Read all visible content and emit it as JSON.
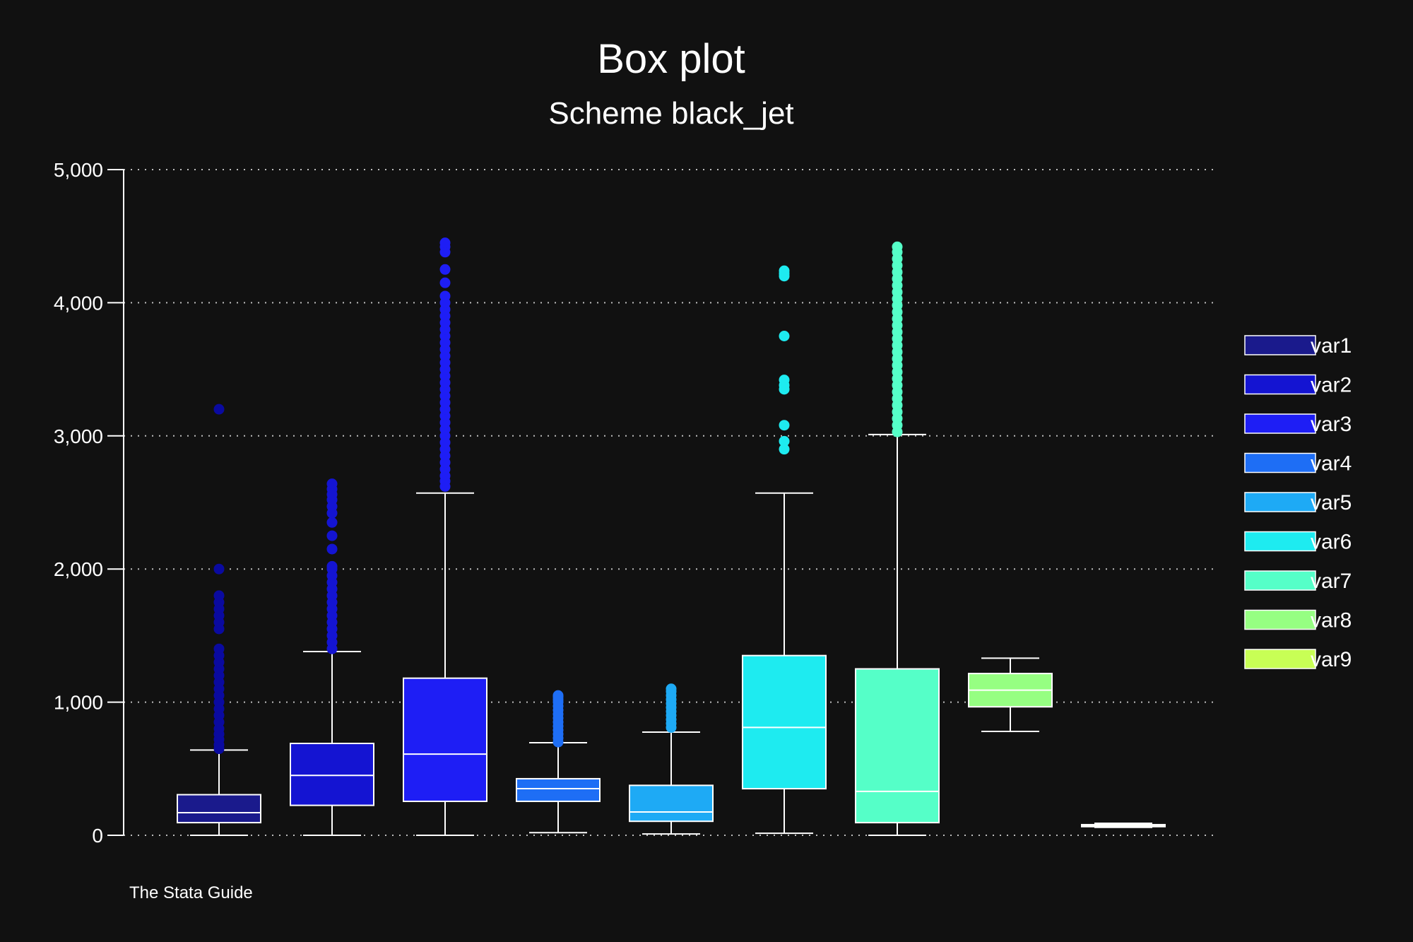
{
  "chart_data": {
    "type": "box",
    "title": "Box plot",
    "subtitle": "Scheme black_jet",
    "note": "The Stata Guide",
    "ylim": [
      0,
      5000
    ],
    "yticks": [
      0,
      1000,
      2000,
      3000,
      4000,
      5000
    ],
    "ytick_labels": [
      "0",
      "1,000",
      "2,000",
      "3,000",
      "4,000",
      "5,000"
    ],
    "grid": true,
    "legend_position": "right",
    "background": "#111111",
    "series": [
      {
        "name": "var1",
        "color": "#1a1a8c",
        "lw": 0,
        "q1": 95,
        "median": 170,
        "q3": 305,
        "uw": 640,
        "outliers": [
          650,
          680,
          720,
          760,
          800,
          850,
          900,
          950,
          1000,
          1050,
          1100,
          1150,
          1200,
          1250,
          1300,
          1350,
          1400,
          1550,
          1600,
          1650,
          1700,
          1750,
          1800,
          2000,
          3200
        ]
      },
      {
        "name": "var2",
        "color": "#1414d2",
        "lw": 0,
        "q1": 225,
        "median": 450,
        "q3": 690,
        "uw": 1380,
        "outliers": [
          1400,
          1450,
          1500,
          1550,
          1600,
          1650,
          1700,
          1750,
          1800,
          1850,
          1900,
          1950,
          2000,
          2020,
          2150,
          2250,
          2350,
          2420,
          2470,
          2520,
          2560,
          2600,
          2640
        ]
      },
      {
        "name": "var3",
        "color": "#1e1ef5",
        "lw": 0,
        "q1": 255,
        "median": 610,
        "q3": 1180,
        "uw": 2570,
        "outliers": [
          2620,
          2660,
          2700,
          2750,
          2800,
          2850,
          2900,
          2950,
          3000,
          3050,
          3100,
          3150,
          3200,
          3250,
          3300,
          3350,
          3400,
          3450,
          3500,
          3550,
          3600,
          3650,
          3700,
          3750,
          3800,
          3850,
          3900,
          3950,
          4000,
          4050,
          4150,
          4250,
          4380,
          4420,
          4450
        ]
      },
      {
        "name": "var4",
        "color": "#1e6ef5",
        "lw": 20,
        "q1": 255,
        "median": 350,
        "q3": 425,
        "uw": 695,
        "outliers": [
          700,
          730,
          760,
          790,
          820,
          850,
          880,
          910,
          940,
          970,
          1000,
          1020,
          1040,
          1050
        ]
      },
      {
        "name": "var5",
        "color": "#1eaaf5",
        "lw": 10,
        "q1": 105,
        "median": 175,
        "q3": 375,
        "uw": 775,
        "outliers": [
          810,
          840,
          870,
          900,
          930,
          960,
          990,
          1020,
          1050,
          1080,
          1100
        ]
      },
      {
        "name": "var6",
        "color": "#1eebf0",
        "lw": 15,
        "q1": 350,
        "median": 810,
        "q3": 1350,
        "uw": 2570,
        "outliers": [
          2900,
          2960,
          3080,
          3350,
          3380,
          3420,
          3750,
          4200,
          4220,
          4240
        ]
      },
      {
        "name": "var7",
        "color": "#55ffc8",
        "lw": 0,
        "q1": 95,
        "median": 330,
        "q3": 1250,
        "uw": 3010,
        "outliers": [
          3030,
          3080,
          3130,
          3180,
          3230,
          3280,
          3330,
          3380,
          3430,
          3480,
          3530,
          3580,
          3630,
          3680,
          3730,
          3780,
          3830,
          3880,
          3930,
          3980,
          4030,
          4080,
          4130,
          4180,
          4230,
          4280,
          4330,
          4380,
          4420
        ]
      },
      {
        "name": "var8",
        "color": "#96ff82",
        "lw": 780,
        "q1": 965,
        "median": 1090,
        "q3": 1215,
        "uw": 1330,
        "outliers": []
      },
      {
        "name": "var9",
        "color": "#c8ff55",
        "lw": 60,
        "q1": 65,
        "median": 75,
        "q3": 80,
        "uw": 90,
        "outliers": []
      }
    ]
  }
}
